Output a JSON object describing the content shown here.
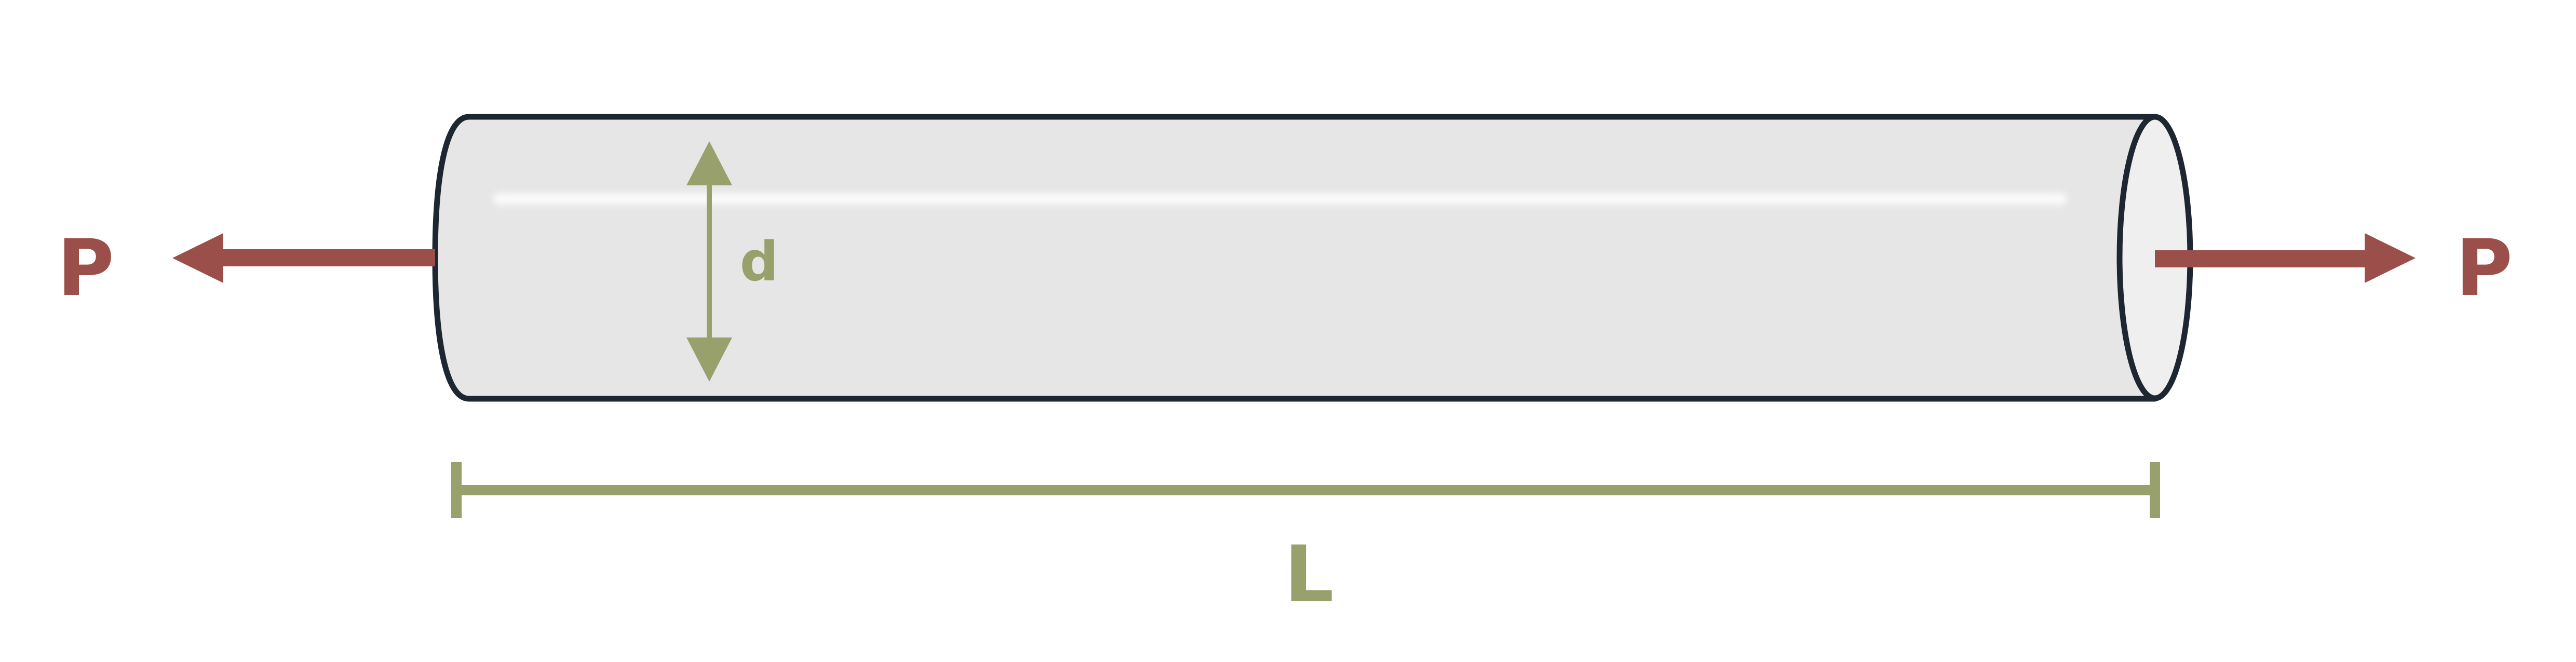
{
  "labels": {
    "force_left": "P",
    "force_right": "P",
    "diameter": "d",
    "length": "L"
  },
  "colors": {
    "force": "#9b4f4a",
    "dimension": "#98a06c",
    "outline": "#1e2731",
    "rod_fill": "#e6e6e6",
    "rod_end_face": "#efefef",
    "highlight": "#fafafa"
  }
}
